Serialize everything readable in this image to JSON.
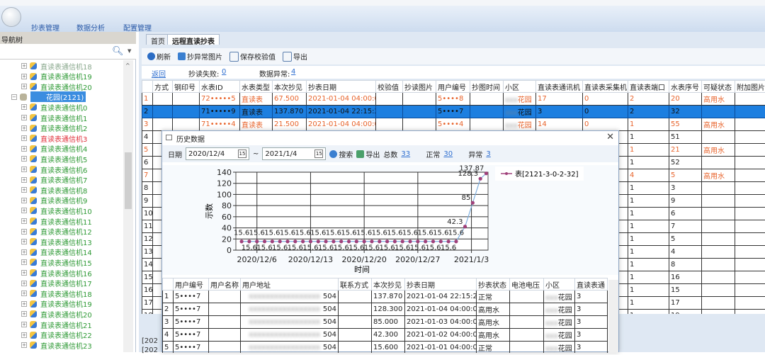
{
  "ribbon": {
    "menus": [
      "抄表管理",
      "数据分析",
      "配置管理"
    ]
  },
  "nav": {
    "title": "导航树",
    "search_icon": "search-icon",
    "items_before": [
      {
        "label": "直读表通信机18",
        "color": "#8aa88d"
      },
      {
        "label": "直读表通信机19",
        "color": "#2f9a36"
      },
      {
        "label": "直读表通信机20",
        "color": "#2f9a36"
      }
    ],
    "group": "花园(2121)",
    "items": [
      "直读表通信机0",
      "直读表通信机1",
      "直读表通信机2",
      "直读表通信机3",
      "直读表通信机4",
      "直读表通信机5",
      "直读表通信机6",
      "直读表通信机7",
      "直读表通信机8",
      "直读表通信机9",
      "直读表通信机10",
      "直读表通信机11",
      "直读表通信机12",
      "直读表通信机13",
      "直读表通信机14",
      "直读表通信机15",
      "直读表通信机16",
      "直读表通信机17",
      "直读表通信机18",
      "直读表通信机19",
      "直读表通信机20",
      "直读表通信机21",
      "直读表通信机22",
      "直读表通信机23"
    ],
    "alert_item_index": 3,
    "alert_color": "#e0323c",
    "ok_color": "#2f9a36"
  },
  "tabs": [
    "首页",
    "远程直读抄表"
  ],
  "toolbar": {
    "refresh": "刷新",
    "abnormal_image": "抄异常图片",
    "save_check": "保存校验值",
    "export": "导出"
  },
  "info": {
    "back": "返回",
    "fail_label": "抄读失败:",
    "fail_count": "0",
    "abnormal_label": "数据异常:",
    "abnormal_count": "4"
  },
  "grid": {
    "columns": [
      "",
      "方式",
      "钢印号",
      "水表ID",
      "水表类型",
      "本次抄见",
      "抄表日期",
      "校验值",
      "抄读图片",
      "用户编号",
      "抄图时间",
      "小区",
      "直读表通讯机",
      "直读表采集机",
      "直读表端口",
      "水表序号",
      "可疑状态",
      "附加图片"
    ],
    "rows": [
      {
        "n": "1",
        "id": "72•••••5",
        "type": "直读表",
        "reading": "67.500",
        "date": "2021-01-04 04:00:00",
        "user": "5••••8",
        "area": "花园",
        "comm": "17",
        "coll": "0",
        "port": "2",
        "seq": "20",
        "status": "高用水",
        "warn": true
      },
      {
        "n": "2",
        "id": "71•••••9",
        "type": "直读表",
        "reading": "137.870",
        "date": "2021-01-04 22:15:25",
        "user": "5••••7",
        "area": "花园",
        "comm": "3",
        "coll": "0",
        "port": "2",
        "seq": "32",
        "status": "",
        "selected": true
      },
      {
        "n": "3",
        "id": "71•••••4",
        "type": "直读表",
        "reading": "21.500",
        "date": "2021-01-04 04:00:00",
        "user": "5••••4",
        "area": "花园",
        "comm": "14",
        "coll": "0",
        "port": "1",
        "seq": "55",
        "status": "高用水",
        "warn": true
      },
      {
        "n": "4",
        "port": "1",
        "seq": "51",
        "status": ""
      },
      {
        "n": "5",
        "port": "1",
        "seq": "21",
        "status": "高用水",
        "warn": true
      },
      {
        "n": "6",
        "port": "1",
        "seq": "52",
        "status": ""
      },
      {
        "n": "7",
        "port": "4",
        "seq": "5",
        "status": "高用水",
        "warn": true
      },
      {
        "n": "8",
        "port": "1",
        "seq": "3",
        "status": ""
      },
      {
        "n": "9",
        "port": "1",
        "seq": "9",
        "status": ""
      },
      {
        "n": "10",
        "port": "1",
        "seq": "6",
        "status": ""
      },
      {
        "n": "11",
        "port": "1",
        "seq": "7",
        "status": ""
      },
      {
        "n": "12",
        "port": "1",
        "seq": "5",
        "status": ""
      },
      {
        "n": "13",
        "port": "1",
        "seq": "4",
        "status": ""
      },
      {
        "n": "14",
        "port": "1",
        "seq": "8",
        "status": ""
      },
      {
        "n": "15",
        "port": "1",
        "seq": "16",
        "status": ""
      },
      {
        "n": "16",
        "port": "1",
        "seq": "15",
        "status": ""
      },
      {
        "n": "17",
        "port": "1",
        "seq": "17",
        "status": ""
      },
      {
        "n": "18",
        "port": "1",
        "seq": "19",
        "status": ""
      },
      {
        "n": "19",
        "port": "1",
        "seq": "18",
        "status": ""
      }
    ]
  },
  "log": [
    "[202",
    "[202"
  ],
  "dialog": {
    "title": "历史数据",
    "date_label": "日期",
    "start": "2020/12/4",
    "end": "2021/1/4",
    "tilde": "~",
    "search": "搜索",
    "export": "导出",
    "total_label": "总数",
    "total": "33",
    "normal_label": "正常",
    "normal": "30",
    "abnormal_label": "异常",
    "abnormal": "3",
    "columns": [
      "",
      "用户编号",
      "用户名称",
      "用户地址",
      "联系方式",
      "本次抄见",
      "抄表日期",
      "抄表状态",
      "电池电压",
      "小区",
      "直读表通"
    ],
    "rows": [
      {
        "n": "1",
        "user": "5••••7",
        "addr": "504",
        "reading": "137.870",
        "date": "2021-01-04 22:15:25",
        "status": "正常",
        "area": "花园",
        "comm": "3"
      },
      {
        "n": "2",
        "user": "5••••7",
        "addr": "504",
        "reading": "128.300",
        "date": "2021-01-04 04:00:00",
        "status": "高用水",
        "area": "花园",
        "comm": "3"
      },
      {
        "n": "3",
        "user": "5••••7",
        "addr": "504",
        "reading": "85.000",
        "date": "2021-01-03 04:00:00",
        "status": "高用水",
        "area": "花园",
        "comm": "3"
      },
      {
        "n": "4",
        "user": "5••••7",
        "addr": "504",
        "reading": "42.300",
        "date": "2021-01-02 04:00:00",
        "status": "高用水",
        "area": "花园",
        "comm": "3"
      },
      {
        "n": "5",
        "user": "5••••7",
        "addr": "504",
        "reading": "15.600",
        "date": "2021-01-01 04:00:00",
        "status": "正常",
        "area": "花园",
        "comm": "3"
      }
    ]
  },
  "chart_data": {
    "type": "line",
    "xlabel": "时间",
    "ylabel": "示数",
    "ylim": [
      0,
      140
    ],
    "yticks": [
      0,
      20,
      40,
      60,
      80,
      100,
      120,
      140
    ],
    "xticks": [
      "2020/12/6",
      "2020/12/13",
      "2020/12/20",
      "2020/12/27",
      "2021/1/3"
    ],
    "grid": true,
    "legend": "top-right",
    "series": [
      {
        "name": "表[2121-3-0-2-32]",
        "color": "#a0407a",
        "line_color": "#7fb0e0",
        "x": [
          "2020-12-04",
          "2020-12-05",
          "2020-12-06",
          "2020-12-07",
          "2020-12-08",
          "2020-12-09",
          "2020-12-10",
          "2020-12-11",
          "2020-12-12",
          "2020-12-13",
          "2020-12-14",
          "2020-12-15",
          "2020-12-16",
          "2020-12-17",
          "2020-12-18",
          "2020-12-19",
          "2020-12-20",
          "2020-12-21",
          "2020-12-22",
          "2020-12-23",
          "2020-12-24",
          "2020-12-25",
          "2020-12-26",
          "2020-12-27",
          "2020-12-28",
          "2020-12-29",
          "2020-12-30",
          "2020-12-31",
          "2021-01-01",
          "2021-01-02 04:00",
          "2021-01-03 04:00",
          "2021-01-04 04:00",
          "2021-01-04 22:15"
        ],
        "values": [
          15.6,
          15.6,
          15.6,
          15.6,
          15.6,
          15.6,
          15.6,
          15.6,
          15.6,
          15.6,
          15.6,
          15.6,
          15.6,
          15.6,
          15.6,
          15.6,
          15.6,
          15.6,
          15.6,
          15.6,
          15.6,
          15.6,
          15.6,
          15.6,
          15.6,
          15.6,
          15.6,
          15.6,
          15.6,
          42.3,
          85,
          128.3,
          137.87
        ]
      }
    ]
  }
}
